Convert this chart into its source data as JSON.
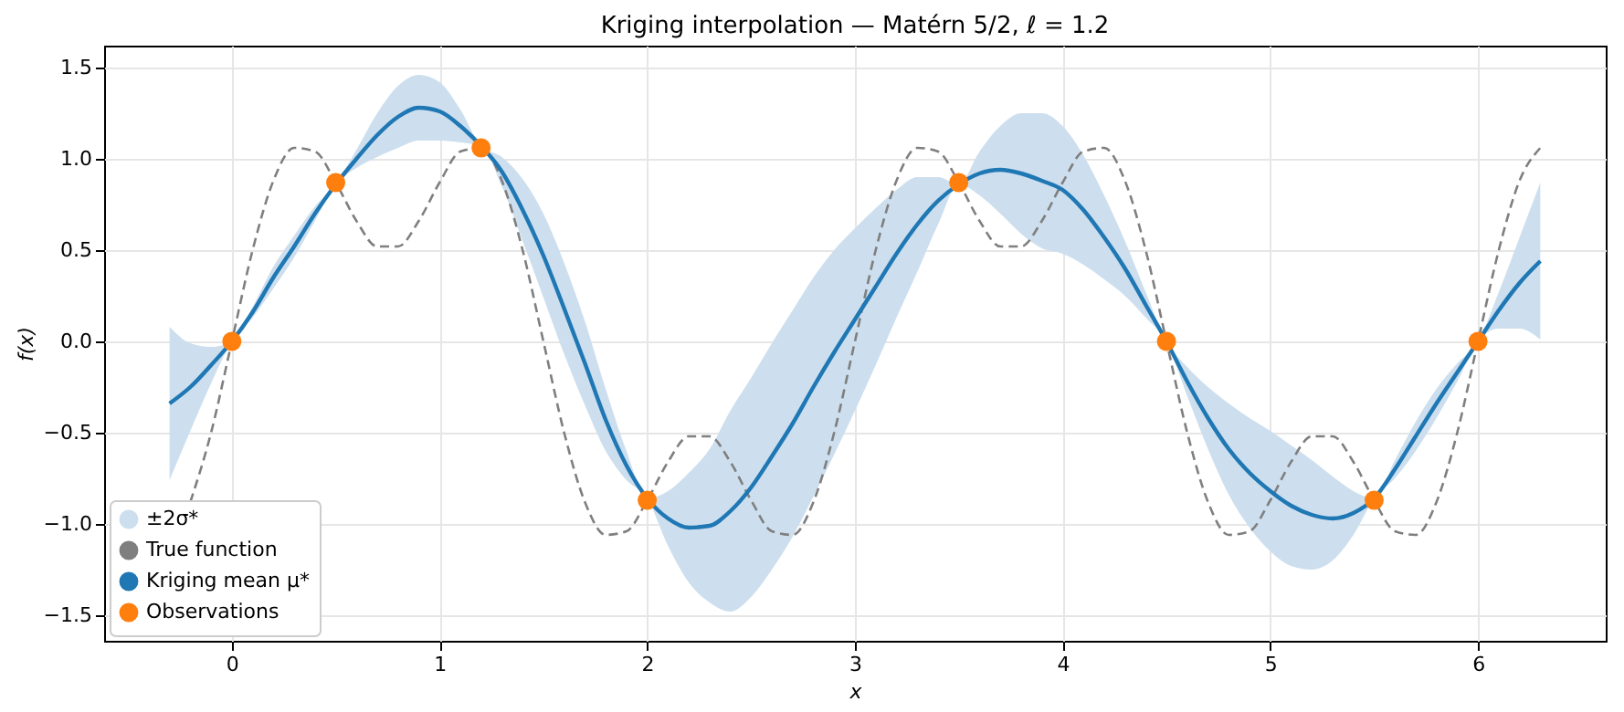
{
  "chart_data": {
    "type": "line",
    "title": "Kriging interpolation — Matérn 5/2, ℓ = 1.2",
    "xlabel": "x",
    "ylabel": "f(x)",
    "xlim": [
      -0.615,
      6.615
    ],
    "ylim": [
      -1.64,
      1.62
    ],
    "xticks": [
      0,
      1,
      2,
      3,
      4,
      5,
      6
    ],
    "yticks": [
      {
        "value": -1.5,
        "label": "−1.5"
      },
      {
        "value": -1.0,
        "label": "−1.0"
      },
      {
        "value": -0.5,
        "label": "−0.5"
      },
      {
        "value": 0,
        "label": "0.0"
      },
      {
        "value": 0.5,
        "label": "0.5"
      },
      {
        "value": 1.0,
        "label": "1.0"
      },
      {
        "value": 1.5,
        "label": "1.5"
      }
    ],
    "grid": true,
    "legend": "bottom left",
    "x": [
      -0.3,
      -0.2,
      -0.1,
      0,
      0.1,
      0.2,
      0.3,
      0.4,
      0.5,
      0.6,
      0.7,
      0.8,
      0.9,
      1,
      1.1,
      1.2,
      1.3,
      1.4,
      1.5,
      1.6,
      1.7,
      1.8,
      1.9,
      2,
      2.1,
      2.2,
      2.3,
      2.4,
      2.5,
      2.6,
      2.7,
      2.8,
      2.9,
      3,
      3.1,
      3.2,
      3.3,
      3.4,
      3.5,
      3.6,
      3.7,
      3.8,
      3.9,
      4,
      4.1,
      4.2,
      4.3,
      4.4,
      4.5,
      4.6,
      4.7,
      4.8,
      4.9,
      5,
      5.1,
      5.2,
      5.3,
      5.4,
      5.5,
      5.6,
      5.7,
      5.8,
      5.9,
      6,
      6.1,
      6.2,
      6.3
    ],
    "series": [
      {
        "type": "area",
        "name": "±2σ*",
        "color": "#cddfee",
        "values": [
          null,
          null,
          null,
          null,
          null,
          null,
          null,
          null,
          null,
          null,
          null,
          null,
          null,
          null,
          null,
          null,
          null,
          null,
          null,
          null,
          null,
          null,
          null,
          null,
          null,
          null,
          null,
          null,
          null,
          null,
          null,
          null,
          null,
          null,
          null,
          null,
          null,
          null,
          null,
          null,
          null,
          null,
          null,
          null,
          null,
          null,
          null,
          null,
          null,
          null,
          null,
          null,
          null,
          null,
          null,
          null,
          null,
          null,
          null,
          null,
          null,
          null,
          null,
          null,
          null,
          null,
          null
        ],
        "lower": [
          -0.76,
          -0.49,
          -0.23,
          0,
          0.13,
          0.29,
          0.46,
          0.66,
          0.86,
          0.95,
          1.01,
          1.06,
          1.1,
          1.1,
          1.09,
          1.07,
          0.85,
          0.55,
          0.24,
          -0.07,
          -0.35,
          -0.6,
          -0.76,
          -0.86,
          -1.12,
          -1.32,
          -1.43,
          -1.48,
          -1.4,
          -1.25,
          -1.07,
          -0.85,
          -0.62,
          -0.38,
          -0.13,
          0.13,
          0.38,
          0.64,
          0.86,
          0.8,
          0.7,
          0.59,
          0.51,
          0.48,
          0.42,
          0.34,
          0.25,
          0.13,
          0,
          -0.3,
          -0.59,
          -0.84,
          -1.02,
          -1.15,
          -1.23,
          -1.25,
          -1.2,
          -1.06,
          -0.86,
          -0.75,
          -0.6,
          -0.42,
          -0.22,
          0,
          0.07,
          0.07,
          0.01
        ],
        "upper": [
          0.08,
          -0.01,
          -0.03,
          0,
          0.19,
          0.41,
          0.58,
          0.74,
          0.86,
          1.05,
          1.25,
          1.4,
          1.46,
          1.42,
          1.27,
          1.07,
          1.01,
          0.89,
          0.7,
          0.43,
          0.11,
          -0.26,
          -0.6,
          -0.86,
          -0.82,
          -0.72,
          -0.59,
          -0.38,
          -0.2,
          -0.01,
          0.17,
          0.35,
          0.5,
          0.62,
          0.73,
          0.83,
          0.9,
          0.9,
          0.86,
          1.04,
          1.18,
          1.25,
          1.25,
          1.18,
          1.02,
          0.8,
          0.55,
          0.27,
          0,
          -0.14,
          -0.25,
          -0.34,
          -0.42,
          -0.49,
          -0.57,
          -0.65,
          -0.74,
          -0.82,
          -0.86,
          -0.65,
          -0.44,
          -0.26,
          -0.12,
          0,
          0.27,
          0.57,
          0.87
        ]
      },
      {
        "type": "line",
        "name": "True function",
        "color": "#7f7f7f",
        "line_style": "dashed",
        "values": [
          null,
          -0.88,
          -0.5,
          0,
          0.5,
          0.88,
          1.06,
          1.04,
          0.87,
          0.66,
          0.52,
          0.52,
          0.66,
          0.87,
          1.04,
          1.06,
          0.88,
          0.5,
          0,
          -0.5,
          -0.88,
          -1.06,
          -1.04,
          -0.87,
          -0.66,
          -0.52,
          -0.52,
          -0.66,
          -0.87,
          -1.04,
          -1.06,
          -0.88,
          -0.5,
          0,
          0.5,
          0.88,
          1.06,
          1.04,
          0.87,
          0.66,
          0.52,
          0.52,
          0.66,
          0.87,
          1.04,
          1.06,
          0.88,
          0.5,
          0,
          -0.5,
          -0.88,
          -1.06,
          -1.04,
          -0.87,
          -0.66,
          -0.52,
          -0.52,
          -0.66,
          -0.87,
          -1.04,
          -1.06,
          -0.88,
          -0.5,
          0,
          0.5,
          0.88,
          1.06
        ]
      },
      {
        "type": "line",
        "name": "Kriging mean μ*",
        "color": "#1f77b4",
        "line_style": "solid",
        "values": [
          -0.34,
          -0.25,
          -0.13,
          0,
          0.16,
          0.35,
          0.52,
          0.7,
          0.86,
          1.0,
          1.13,
          1.23,
          1.28,
          1.26,
          1.18,
          1.07,
          0.93,
          0.72,
          0.47,
          0.18,
          -0.12,
          -0.43,
          -0.68,
          -0.86,
          -0.97,
          -1.02,
          -1.01,
          -0.93,
          -0.8,
          -0.63,
          -0.45,
          -0.25,
          -0.06,
          0.12,
          0.3,
          0.48,
          0.64,
          0.77,
          0.86,
          0.92,
          0.94,
          0.92,
          0.88,
          0.83,
          0.72,
          0.57,
          0.4,
          0.2,
          0,
          -0.22,
          -0.42,
          -0.59,
          -0.72,
          -0.82,
          -0.9,
          -0.95,
          -0.97,
          -0.94,
          -0.86,
          -0.7,
          -0.52,
          -0.34,
          -0.17,
          0,
          0.17,
          0.32,
          0.44
        ]
      },
      {
        "type": "scatter",
        "name": "Observations",
        "color": "#ff7f0e",
        "marker": "circle",
        "x": [
          0,
          0.5,
          1.2,
          2.0,
          3.5,
          4.5,
          5.5,
          6.0
        ],
        "values": [
          0,
          0.87,
          1.06,
          -0.87,
          0.87,
          0,
          -0.87,
          0
        ]
      }
    ]
  }
}
